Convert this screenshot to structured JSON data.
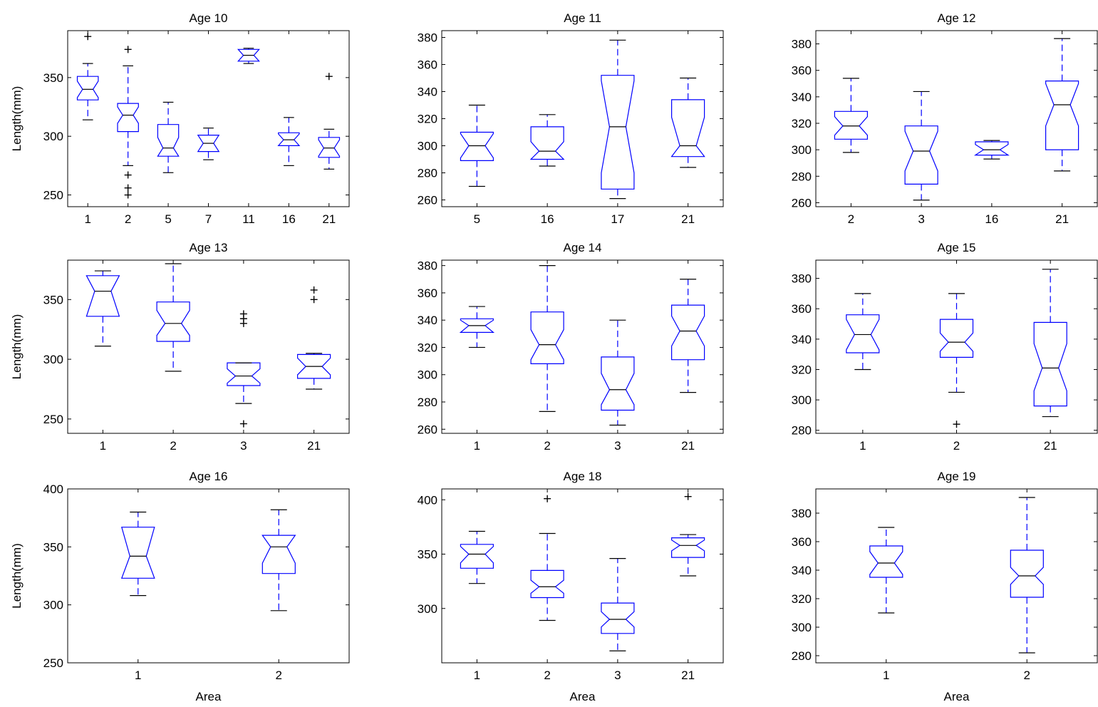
{
  "colors": {
    "box": "#0000ff",
    "median": "#000000",
    "outlier": "#000000",
    "axes": "#000000",
    "background": "#ffffff"
  },
  "chart_data": [
    {
      "type": "boxplot",
      "notched": true,
      "title": "Age 10",
      "xlabel": "",
      "ylabel": "Length(mm)",
      "ylim": [
        240,
        390
      ],
      "yticks": [
        250,
        300,
        350
      ],
      "categories": [
        "1",
        "2",
        "5",
        "7",
        "11",
        "16",
        "21"
      ],
      "boxes": [
        {
          "whisker_low": 314,
          "q1": 331,
          "median": 340,
          "q3": 351,
          "whisker_high": 362,
          "outliers": [
            385
          ],
          "notch": [
            333,
            347
          ]
        },
        {
          "whisker_low": 275,
          "q1": 304,
          "median": 318,
          "q3": 328,
          "whisker_high": 360,
          "outliers": [
            374,
            267,
            256,
            250
          ],
          "notch": [
            311,
            325
          ]
        },
        {
          "whisker_low": 269,
          "q1": 283,
          "median": 290,
          "q3": 310,
          "whisker_high": 329,
          "outliers": [],
          "notch": [
            281,
            299
          ]
        },
        {
          "whisker_low": 280,
          "q1": 287,
          "median": 294,
          "q3": 301,
          "whisker_high": 307,
          "outliers": [],
          "notch": [
            286,
            302
          ]
        },
        {
          "whisker_low": 362,
          "q1": 364,
          "median": 369,
          "q3": 374,
          "whisker_high": 375,
          "outliers": [],
          "notch": [
            364,
            374
          ]
        },
        {
          "whisker_low": 275,
          "q1": 292,
          "median": 297,
          "q3": 303,
          "whisker_high": 316,
          "outliers": [],
          "notch": [
            292,
            302
          ]
        },
        {
          "whisker_low": 272,
          "q1": 282,
          "median": 290,
          "q3": 299,
          "whisker_high": 306,
          "outliers": [
            351
          ],
          "notch": [
            283,
            297
          ]
        }
      ]
    },
    {
      "type": "boxplot",
      "notched": true,
      "title": "Age 11",
      "xlabel": "",
      "ylabel": "",
      "ylim": [
        255,
        385
      ],
      "yticks": [
        260,
        280,
        300,
        320,
        340,
        360,
        380
      ],
      "categories": [
        "5",
        "16",
        "17",
        "21"
      ],
      "boxes": [
        {
          "whisker_low": 270,
          "q1": 289,
          "median": 300,
          "q3": 310,
          "whisker_high": 330,
          "outliers": [],
          "notch": [
            291,
            309
          ]
        },
        {
          "whisker_low": 285,
          "q1": 290,
          "median": 296,
          "q3": 314,
          "whisker_high": 323,
          "outliers": [],
          "notch": [
            290,
            303
          ]
        },
        {
          "whisker_low": 261,
          "q1": 268,
          "median": 314,
          "q3": 352,
          "whisker_high": 378,
          "outliers": [],
          "notch": [
            280,
            348
          ]
        },
        {
          "whisker_low": 284,
          "q1": 292,
          "median": 300,
          "q3": 334,
          "whisker_high": 350,
          "outliers": [],
          "notch": [
            292,
            321
          ]
        }
      ]
    },
    {
      "type": "boxplot",
      "notched": true,
      "title": "Age 12",
      "xlabel": "",
      "ylabel": "",
      "ylim": [
        257,
        390
      ],
      "yticks": [
        260,
        280,
        300,
        320,
        340,
        360,
        380
      ],
      "categories": [
        "2",
        "3",
        "16",
        "21"
      ],
      "boxes": [
        {
          "whisker_low": 298,
          "q1": 308,
          "median": 318,
          "q3": 329,
          "whisker_high": 354,
          "outliers": [],
          "notch": [
            311,
            325
          ]
        },
        {
          "whisker_low": 262,
          "q1": 274,
          "median": 299,
          "q3": 318,
          "whisker_high": 344,
          "outliers": [],
          "notch": [
            284,
            314
          ]
        },
        {
          "whisker_low": 293,
          "q1": 296,
          "median": 300,
          "q3": 306,
          "whisker_high": 307,
          "outliers": [],
          "notch": [
            296,
            304
          ]
        },
        {
          "whisker_low": 284,
          "q1": 300,
          "median": 334,
          "q3": 352,
          "whisker_high": 384,
          "outliers": [],
          "notch": [
            318,
            350
          ]
        }
      ]
    },
    {
      "type": "boxplot",
      "notched": true,
      "title": "Age 13",
      "xlabel": "",
      "ylabel": "Length(mm)",
      "ylim": [
        238,
        383
      ],
      "yticks": [
        250,
        300,
        350
      ],
      "categories": [
        "1",
        "2",
        "3",
        "21"
      ],
      "boxes": [
        {
          "whisker_low": 311,
          "q1": 336,
          "median": 357,
          "q3": 370,
          "whisker_high": 374,
          "outliers": [],
          "notch": [
            336,
            370
          ]
        },
        {
          "whisker_low": 290,
          "q1": 315,
          "median": 330,
          "q3": 348,
          "whisker_high": 380,
          "outliers": [],
          "notch": [
            320,
            341
          ]
        },
        {
          "whisker_low": 263,
          "q1": 278,
          "median": 286,
          "q3": 297,
          "whisker_high": 297,
          "outliers": [
            338,
            334,
            330,
            246
          ],
          "notch": [
            280,
            292
          ]
        },
        {
          "whisker_low": 275,
          "q1": 284,
          "median": 294,
          "q3": 304,
          "whisker_high": 305,
          "outliers": [
            358,
            350
          ],
          "notch": [
            287,
            301
          ]
        }
      ]
    },
    {
      "type": "boxplot",
      "notched": true,
      "title": "Age 14",
      "xlabel": "",
      "ylabel": "",
      "ylim": [
        257,
        384
      ],
      "yticks": [
        260,
        280,
        300,
        320,
        340,
        360,
        380
      ],
      "categories": [
        "1",
        "2",
        "3",
        "21"
      ],
      "boxes": [
        {
          "whisker_low": 320,
          "q1": 331,
          "median": 336,
          "q3": 341,
          "whisker_high": 350,
          "outliers": [],
          "notch": [
            331,
            340
          ]
        },
        {
          "whisker_low": 273,
          "q1": 308,
          "median": 322,
          "q3": 346,
          "whisker_high": 380,
          "outliers": [],
          "notch": [
            311,
            333
          ]
        },
        {
          "whisker_low": 263,
          "q1": 274,
          "median": 289,
          "q3": 313,
          "whisker_high": 340,
          "outliers": [],
          "notch": [
            278,
            301
          ]
        },
        {
          "whisker_low": 287,
          "q1": 311,
          "median": 332,
          "q3": 351,
          "whisker_high": 370,
          "outliers": [],
          "notch": [
            321,
            343
          ]
        }
      ]
    },
    {
      "type": "boxplot",
      "notched": true,
      "title": "Age 15",
      "xlabel": "",
      "ylabel": "",
      "ylim": [
        278,
        392
      ],
      "yticks": [
        280,
        300,
        320,
        340,
        360,
        380
      ],
      "categories": [
        "1",
        "2",
        "21"
      ],
      "boxes": [
        {
          "whisker_low": 320,
          "q1": 331,
          "median": 343,
          "q3": 356,
          "whisker_high": 370,
          "outliers": [],
          "notch": [
            333,
            353
          ]
        },
        {
          "whisker_low": 305,
          "q1": 328,
          "median": 338,
          "q3": 353,
          "whisker_high": 370,
          "outliers": [
            284
          ],
          "notch": [
            332,
            344
          ]
        },
        {
          "whisker_low": 289,
          "q1": 296,
          "median": 321,
          "q3": 351,
          "whisker_high": 386,
          "outliers": [],
          "notch": [
            306,
            337
          ]
        }
      ]
    },
    {
      "type": "boxplot",
      "notched": true,
      "title": "Age 16",
      "xlabel": "Area",
      "ylabel": "Length(mm)",
      "ylim": [
        250,
        400
      ],
      "yticks": [
        250,
        300,
        350,
        400
      ],
      "categories": [
        "1",
        "2"
      ],
      "boxes": [
        {
          "whisker_low": 308,
          "q1": 323,
          "median": 342,
          "q3": 367,
          "whisker_high": 380,
          "outliers": [],
          "notch": [
            323,
            367
          ]
        },
        {
          "whisker_low": 295,
          "q1": 327,
          "median": 350,
          "q3": 360,
          "whisker_high": 382,
          "outliers": [],
          "notch": [
            336,
            364
          ]
        }
      ]
    },
    {
      "type": "boxplot",
      "notched": true,
      "title": "Age 18",
      "xlabel": "Area",
      "ylabel": "",
      "ylim": [
        250,
        410
      ],
      "yticks": [
        300,
        350,
        400
      ],
      "categories": [
        "1",
        "2",
        "3",
        "21"
      ],
      "boxes": [
        {
          "whisker_low": 323,
          "q1": 337,
          "median": 350,
          "q3": 359,
          "whisker_high": 371,
          "outliers": [],
          "notch": [
            342,
            357
          ]
        },
        {
          "whisker_low": 289,
          "q1": 310,
          "median": 320,
          "q3": 335,
          "whisker_high": 369,
          "outliers": [
            401
          ],
          "notch": [
            314,
            326
          ]
        },
        {
          "whisker_low": 261,
          "q1": 277,
          "median": 290,
          "q3": 305,
          "whisker_high": 346,
          "outliers": [],
          "notch": [
            283,
            297
          ]
        },
        {
          "whisker_low": 330,
          "q1": 347,
          "median": 358,
          "q3": 365,
          "whisker_high": 368,
          "outliers": [
            403
          ],
          "notch": [
            353,
            363
          ]
        }
      ]
    },
    {
      "type": "boxplot",
      "notched": true,
      "title": "Age 19",
      "xlabel": "Area",
      "ylabel": "",
      "ylim": [
        275,
        397
      ],
      "yticks": [
        280,
        300,
        320,
        340,
        360,
        380
      ],
      "categories": [
        "1",
        "2"
      ],
      "boxes": [
        {
          "whisker_low": 310,
          "q1": 335,
          "median": 345,
          "q3": 357,
          "whisker_high": 370,
          "outliers": [],
          "notch": [
            337,
            353
          ]
        },
        {
          "whisker_low": 282,
          "q1": 321,
          "median": 336,
          "q3": 354,
          "whisker_high": 391,
          "outliers": [],
          "notch": [
            330,
            342
          ]
        }
      ]
    }
  ]
}
